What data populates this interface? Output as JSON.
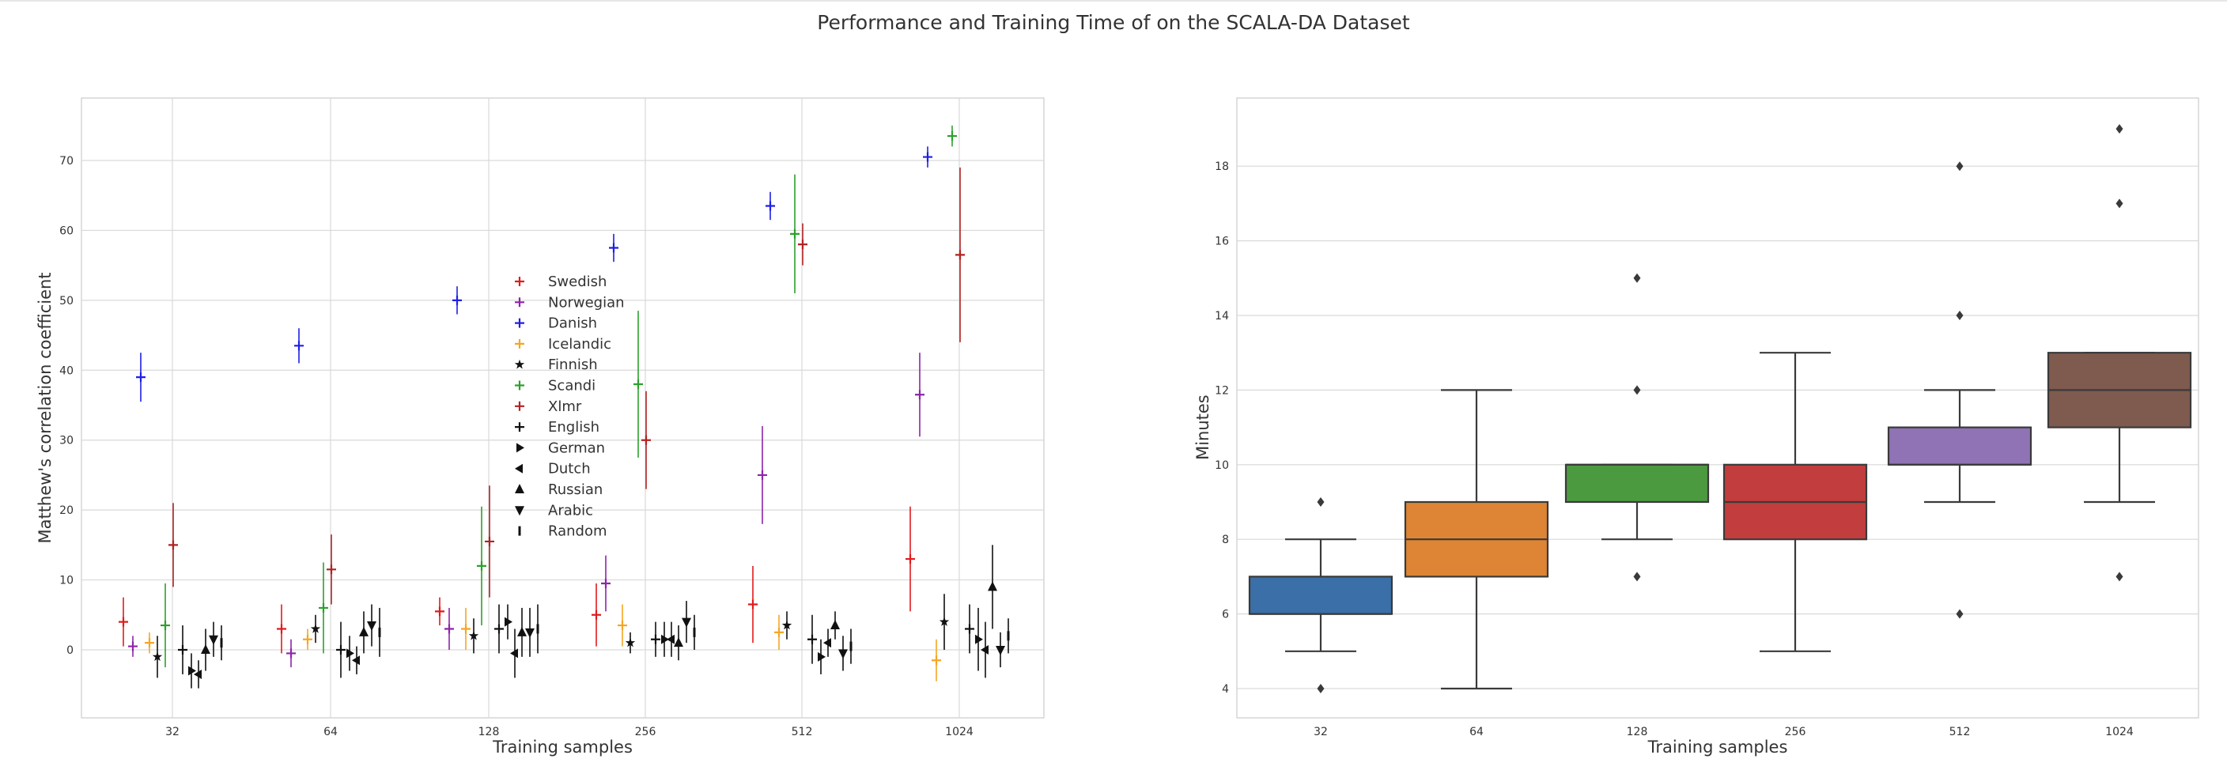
{
  "title": "Performance and Training Time of on the SCALA-DA Dataset",
  "chart_data": [
    {
      "type": "scatter",
      "subtype": "errorbar",
      "xlabel": "Training samples",
      "ylabel": "Matthew's correlation coefficient",
      "categories": [
        "32",
        "64",
        "128",
        "256",
        "512",
        "1024"
      ],
      "yticks": [
        0,
        10,
        20,
        30,
        40,
        50,
        60,
        70
      ],
      "ylim": [
        -10,
        79
      ],
      "grid": true,
      "legend_position": "center",
      "series": [
        {
          "name": "Swedish",
          "marker": "plus",
          "color": "#e31a1c",
          "values": [
            4,
            3,
            5.5,
            5,
            6.5,
            13
          ],
          "err": [
            3.5,
            3.5,
            2,
            4.5,
            5.5,
            7.5
          ]
        },
        {
          "name": "Norwegian",
          "marker": "plus",
          "color": "#8e24aa",
          "values": [
            0.5,
            -0.5,
            3,
            9.5,
            25,
            36.5
          ],
          "err": [
            1.5,
            2,
            3,
            4,
            7,
            6
          ]
        },
        {
          "name": "Danish",
          "marker": "plus",
          "color": "#1f1fe6",
          "values": [
            39,
            43.5,
            50,
            57.5,
            63.5,
            70.5
          ],
          "err": [
            3.5,
            2.5,
            2,
            2,
            2,
            1.5
          ]
        },
        {
          "name": "Icelandic",
          "marker": "plus",
          "color": "#f5a623",
          "values": [
            1,
            1.5,
            3,
            3.5,
            2.5,
            -1.5
          ],
          "err": [
            1.5,
            1.5,
            3,
            3,
            2.5,
            3
          ]
        },
        {
          "name": "Finnish",
          "marker": "star",
          "color": "#111111",
          "values": [
            -1,
            3,
            2,
            1,
            3.5,
            4
          ],
          "err": [
            3,
            2,
            2.5,
            1.5,
            2,
            4
          ]
        },
        {
          "name": "Scandi",
          "marker": "plus",
          "color": "#2ca02c",
          "values": [
            3.5,
            6,
            12,
            38,
            59.5,
            73.5
          ],
          "err": [
            6,
            6.5,
            8.5,
            10.5,
            8.5,
            1.5
          ]
        },
        {
          "name": "Xlmr",
          "marker": "plus",
          "color": "#b22222",
          "values": [
            15,
            11.5,
            15.5,
            30,
            58,
            56.5
          ],
          "err": [
            6,
            5,
            8,
            7,
            3,
            12.5
          ]
        },
        {
          "name": "English",
          "marker": "plus",
          "color": "#111111",
          "values": [
            0,
            0,
            3,
            1.5,
            1.5,
            3
          ],
          "err": [
            3.5,
            4,
            3.5,
            2.5,
            3.5,
            3.5
          ]
        },
        {
          "name": "German",
          "marker": "triangle-right",
          "color": "#111111",
          "values": [
            -3,
            -0.5,
            4,
            1.5,
            -1,
            1.5
          ],
          "err": [
            2.5,
            2.5,
            2.5,
            2.5,
            2.5,
            4.5
          ]
        },
        {
          "name": "Dutch",
          "marker": "triangle-left",
          "color": "#111111",
          "values": [
            -3.5,
            -1.5,
            -0.5,
            1.5,
            1,
            0
          ],
          "err": [
            2,
            2,
            3.5,
            2.5,
            2,
            4
          ]
        },
        {
          "name": "Russian",
          "marker": "triangle-up",
          "color": "#111111",
          "values": [
            0,
            2.5,
            2.5,
            1,
            3.5,
            9
          ],
          "err": [
            3,
            3,
            3.5,
            2.5,
            2,
            6
          ]
        },
        {
          "name": "Arabic",
          "marker": "triangle-down",
          "color": "#111111",
          "values": [
            1.5,
            3.5,
            2.5,
            4,
            -0.5,
            0
          ],
          "err": [
            2.5,
            3,
            3.5,
            3,
            2.5,
            2.5
          ]
        },
        {
          "name": "Random",
          "marker": "vline",
          "color": "#111111",
          "values": [
            1,
            2.5,
            3,
            2.5,
            0.5,
            2
          ],
          "err": [
            2.5,
            3.5,
            3.5,
            2.5,
            2.5,
            2.5
          ]
        }
      ]
    },
    {
      "type": "box",
      "xlabel": "Training samples",
      "ylabel": "Minutes",
      "categories": [
        "32",
        "64",
        "128",
        "256",
        "512",
        "1024"
      ],
      "yticks": [
        4,
        6,
        8,
        10,
        12,
        14,
        16,
        18
      ],
      "ylim": [
        3.3,
        19.6
      ],
      "grid": true,
      "boxes": [
        {
          "category": "32",
          "color": "#3a6fa8",
          "whisker_low": 5,
          "q1": 6,
          "median": 6,
          "q3": 7,
          "whisker_high": 8,
          "outliers": [
            9,
            4
          ]
        },
        {
          "category": "64",
          "color": "#dd8534",
          "whisker_low": 4,
          "q1": 7,
          "median": 8,
          "q3": 9,
          "whisker_high": 12,
          "outliers": []
        },
        {
          "category": "128",
          "color": "#4c9a3f",
          "whisker_low": 8,
          "q1": 9,
          "median": 10,
          "q3": 10,
          "whisker_high": 10,
          "outliers": [
            15,
            12,
            7
          ]
        },
        {
          "category": "256",
          "color": "#c23d3d",
          "whisker_low": 5,
          "q1": 8,
          "median": 9,
          "q3": 10,
          "whisker_high": 13,
          "outliers": []
        },
        {
          "category": "512",
          "color": "#8f73b5",
          "whisker_low": 9,
          "q1": 10,
          "median": 10,
          "q3": 11,
          "whisker_high": 12,
          "outliers": [
            18,
            14,
            6
          ]
        },
        {
          "category": "1024",
          "color": "#7f5a4f",
          "whisker_low": 9,
          "q1": 11,
          "median": 12,
          "q3": 13,
          "whisker_high": 13,
          "outliers": [
            19,
            17,
            7
          ]
        }
      ]
    }
  ]
}
